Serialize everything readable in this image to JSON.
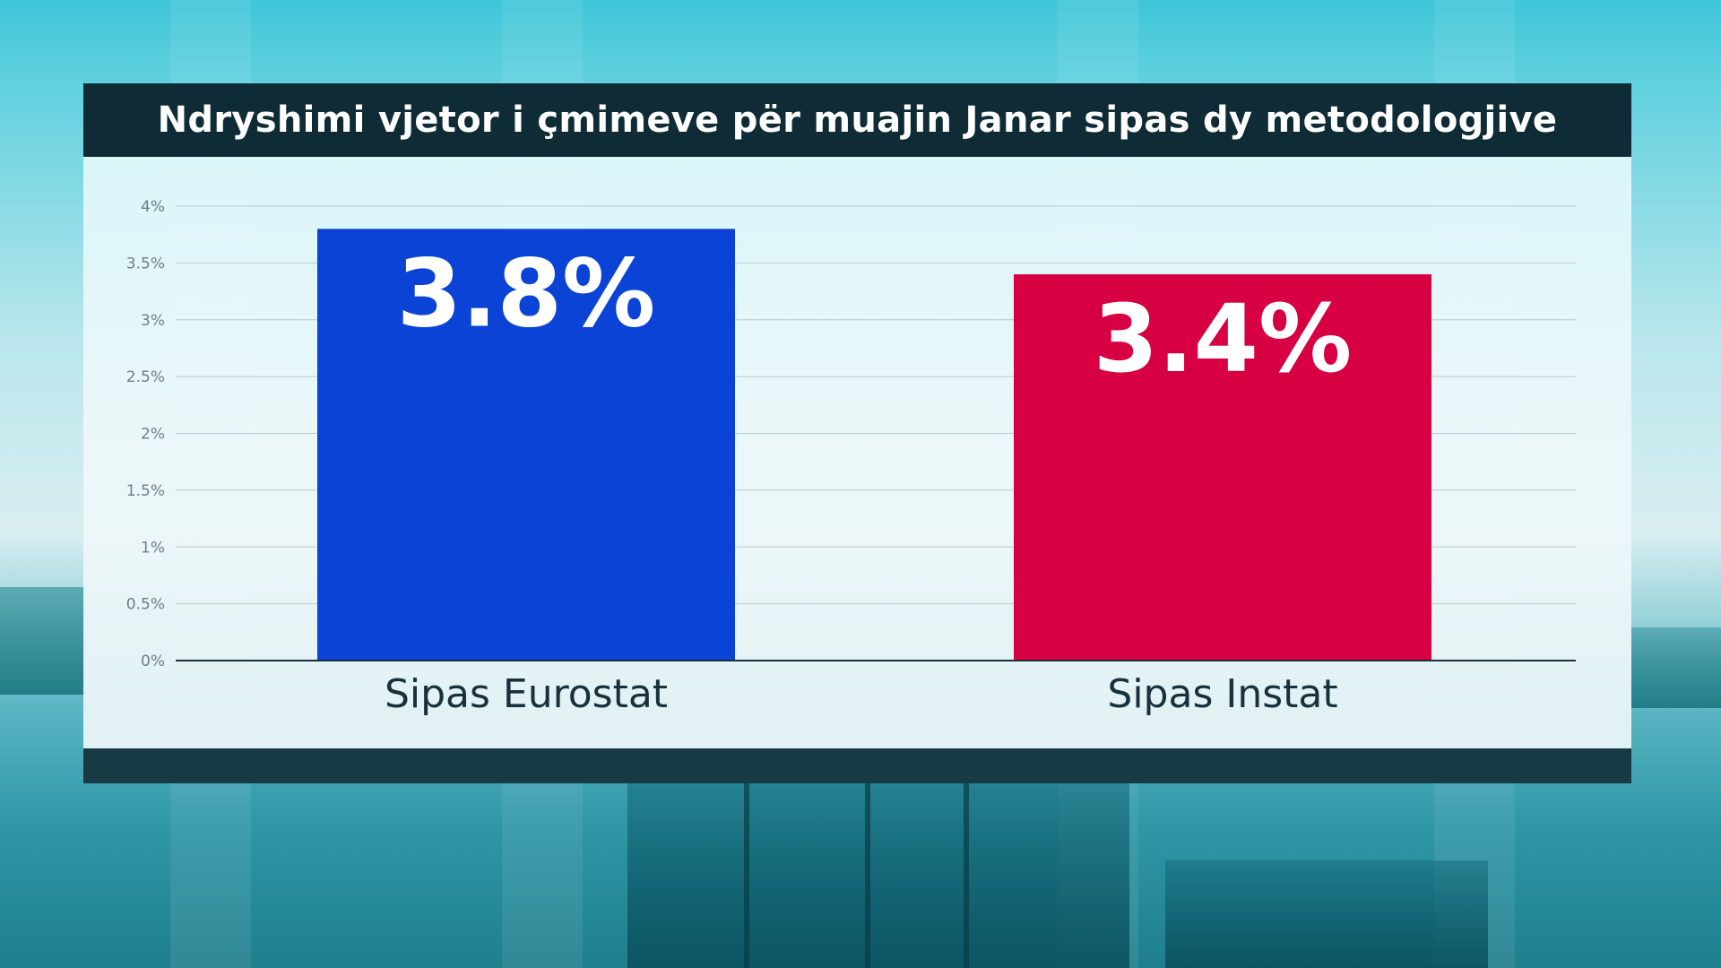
{
  "title": "Ndryshimi vjetor i çmimeve për muajin Janar sipas dy metodologjive",
  "chart_data": {
    "type": "bar",
    "title": "Ndryshimi vjetor i çmimeve për muajin Janar sipas dy metodologjive",
    "categories": [
      "Sipas Eurostat",
      "Sipas Instat"
    ],
    "values": [
      3.8,
      3.4
    ],
    "value_labels": [
      "3.8%",
      "3.4%"
    ],
    "colors": [
      "#0a43d6",
      "#d70043"
    ],
    "ylim": [
      0,
      4
    ],
    "yticks": [
      0,
      0.5,
      1,
      1.5,
      2,
      2.5,
      3,
      3.5,
      4
    ],
    "ytick_labels": [
      "0%",
      "0.5%",
      "1%",
      "1.5%",
      "2%",
      "2.5%",
      "3%",
      "3.5%",
      "4%"
    ],
    "grid": true,
    "xlabel": "",
    "ylabel": ""
  }
}
